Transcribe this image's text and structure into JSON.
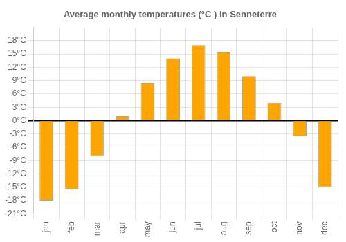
{
  "chart_data": {
    "type": "bar",
    "title": "Average monthly temperatures (°C ) in Senneterre",
    "categories": [
      "jan",
      "feb",
      "mar",
      "apr",
      "may",
      "jun",
      "jul",
      "aug",
      "sep",
      "oct",
      "nov",
      "dec"
    ],
    "values": [
      -18,
      -15.5,
      -8,
      1,
      8.5,
      14,
      17,
      15.5,
      10,
      4,
      -3.5,
      -15
    ],
    "color": "#FFA500",
    "ylim": [
      -21,
      21
    ],
    "yticks": [
      {
        "value": -21,
        "label": "-21°C"
      },
      {
        "value": -18,
        "label": "-18°C"
      },
      {
        "value": -15,
        "label": "-15°C"
      },
      {
        "value": -12,
        "label": "-12°C"
      },
      {
        "value": -9,
        "label": "-9°C"
      },
      {
        "value": -6,
        "label": "-6°C"
      },
      {
        "value": -3,
        "label": "-3°C"
      },
      {
        "value": 0,
        "label": "0°C"
      },
      {
        "value": 3,
        "label": "3°C"
      },
      {
        "value": 6,
        "label": "6°C"
      },
      {
        "value": 9,
        "label": "9°C"
      },
      {
        "value": 12,
        "label": "12°C"
      },
      {
        "value": 15,
        "label": "15°C"
      },
      {
        "value": 18,
        "label": "18°C"
      }
    ],
    "grid": true
  }
}
